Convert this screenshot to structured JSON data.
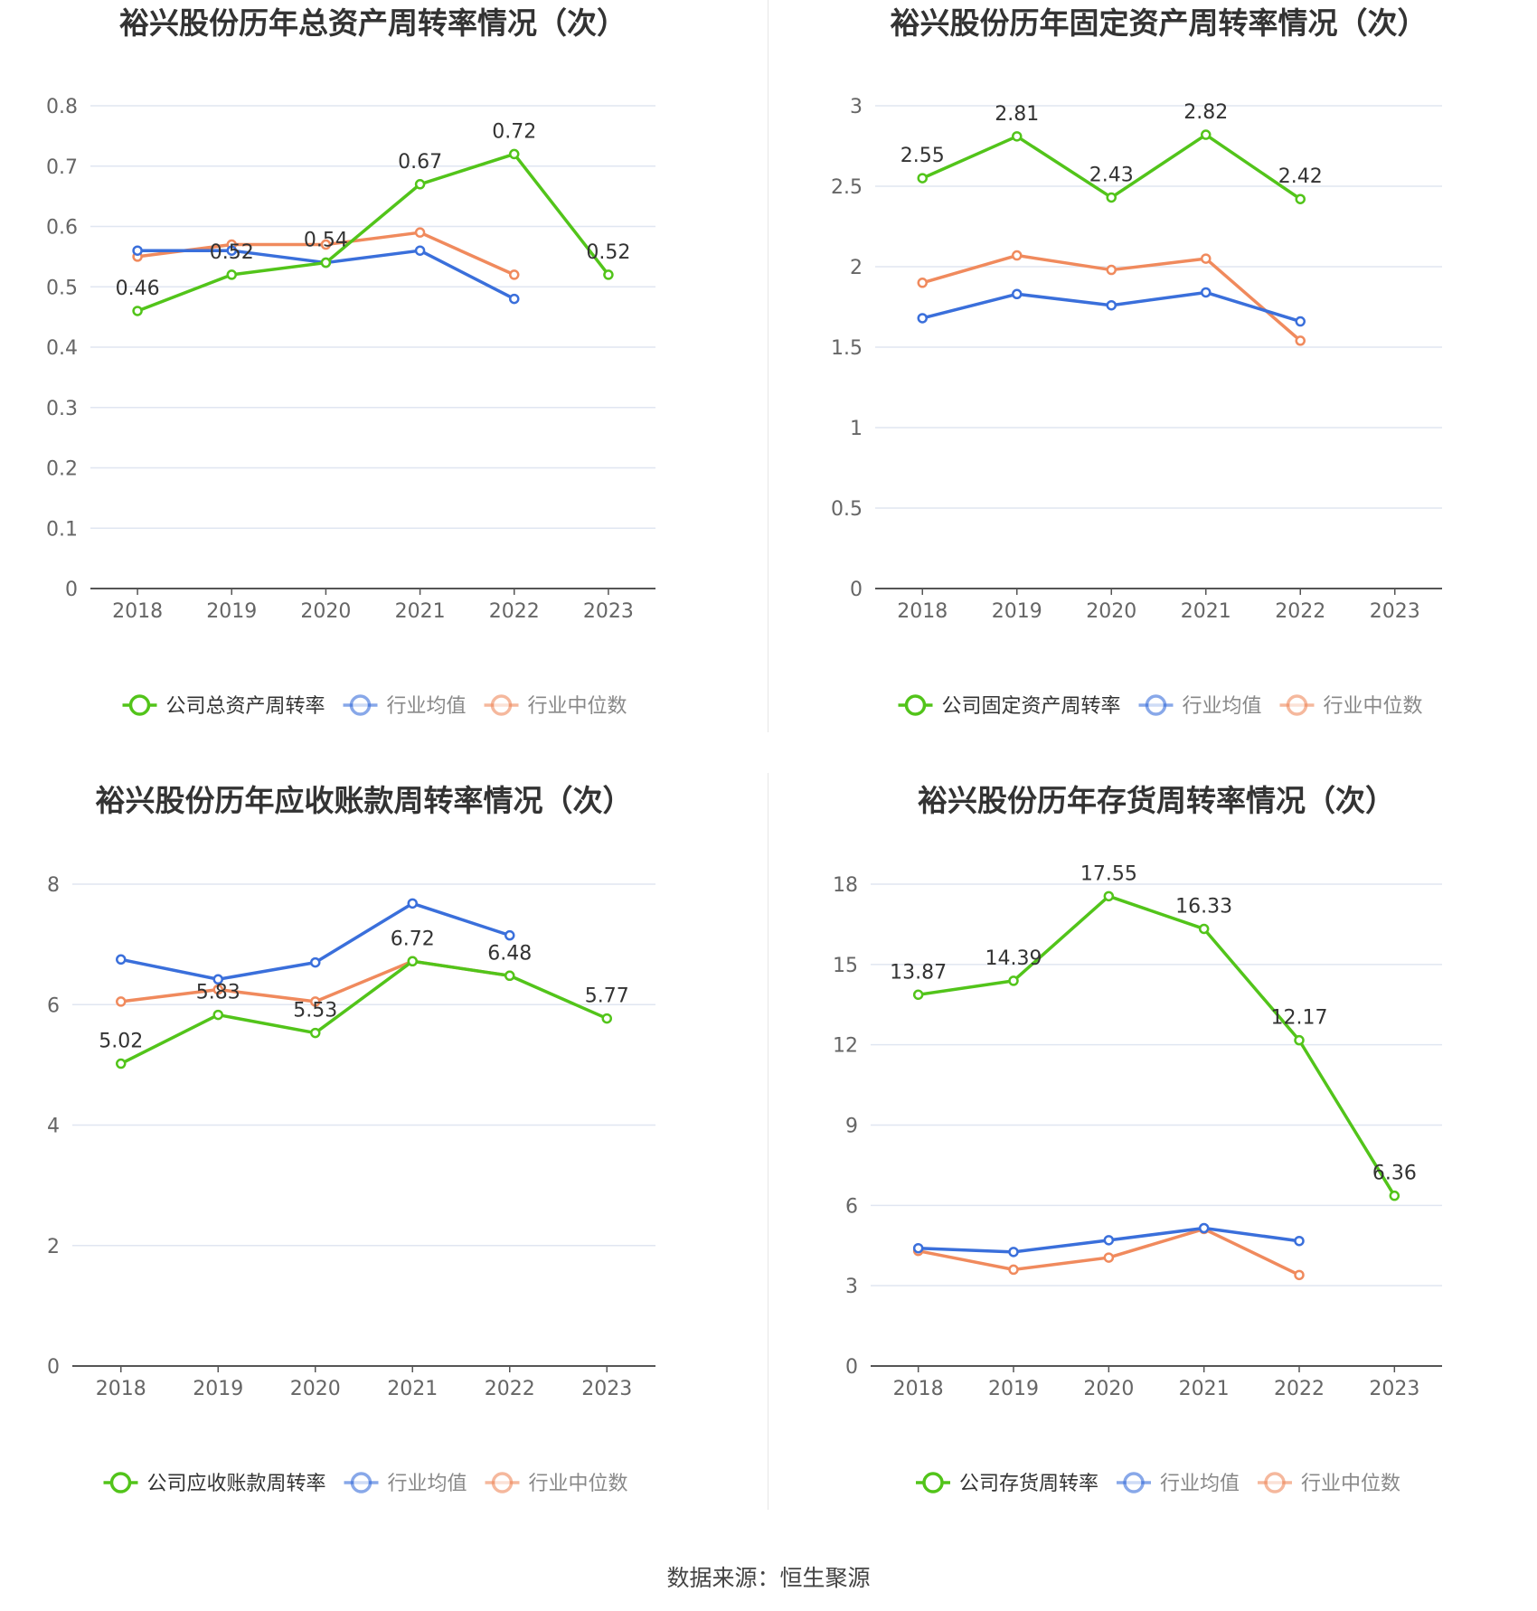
{
  "chart_data": [
    {
      "type": "line",
      "title": "裕兴股份历年总资产周转率情况（次）",
      "categories": [
        "2018",
        "2019",
        "2020",
        "2021",
        "2022",
        "2023"
      ],
      "y_ticks": [
        "0",
        "0.1",
        "0.2",
        "0.3",
        "0.4",
        "0.5",
        "0.6",
        "0.7",
        "0.8"
      ],
      "ylim": [
        0,
        0.8
      ],
      "grid": true,
      "legend_position": "bottom",
      "series": [
        {
          "name": "公司总资产周转率",
          "color": "#52c41a",
          "values": [
            0.46,
            0.52,
            0.54,
            0.67,
            0.72,
            0.52
          ],
          "labels": [
            "0.46",
            "0.52",
            "0.54",
            "0.67",
            "0.72",
            "0.52"
          ]
        },
        {
          "name": "行业均值",
          "color": "#3a6fdb",
          "values": [
            0.56,
            0.56,
            0.54,
            0.56,
            0.48,
            null
          ]
        },
        {
          "name": "行业中位数",
          "color": "#f08a5d",
          "values": [
            0.55,
            0.57,
            0.57,
            0.59,
            0.52,
            null
          ]
        }
      ]
    },
    {
      "type": "line",
      "title": "裕兴股份历年固定资产周转率情况（次）",
      "categories": [
        "2018",
        "2019",
        "2020",
        "2021",
        "2022",
        "2023"
      ],
      "y_ticks": [
        "0",
        "0.5",
        "1",
        "1.5",
        "2",
        "2.5",
        "3"
      ],
      "ylim": [
        0,
        3
      ],
      "grid": true,
      "legend_position": "bottom",
      "series": [
        {
          "name": "公司固定资产周转率",
          "color": "#52c41a",
          "values": [
            2.55,
            2.81,
            2.43,
            2.82,
            2.42,
            null
          ],
          "labels": [
            "2.55",
            "2.81",
            "2.43",
            "2.82",
            "2.42",
            ""
          ]
        },
        {
          "name": "行业均值",
          "color": "#3a6fdb",
          "values": [
            1.68,
            1.83,
            1.76,
            1.84,
            1.66,
            null
          ]
        },
        {
          "name": "行业中位数",
          "color": "#f08a5d",
          "values": [
            1.9,
            2.07,
            1.98,
            2.05,
            1.54,
            null
          ]
        }
      ]
    },
    {
      "type": "line",
      "title": "裕兴股份历年应收账款周转率情况（次）",
      "categories": [
        "2018",
        "2019",
        "2020",
        "2021",
        "2022",
        "2023"
      ],
      "y_ticks": [
        "0",
        "2",
        "4",
        "6",
        "8"
      ],
      "ylim": [
        0,
        8
      ],
      "grid": true,
      "legend_position": "bottom",
      "series": [
        {
          "name": "公司应收账款周转率",
          "color": "#52c41a",
          "values": [
            5.02,
            5.83,
            5.53,
            6.72,
            6.48,
            5.77
          ],
          "labels": [
            "5.02",
            "5.83",
            "5.53",
            "6.72",
            "6.48",
            "5.77"
          ]
        },
        {
          "name": "行业均值",
          "color": "#3a6fdb",
          "values": [
            6.75,
            6.42,
            6.7,
            7.68,
            7.15,
            null
          ]
        },
        {
          "name": "行业中位数",
          "color": "#f08a5d",
          "values": [
            6.05,
            6.25,
            6.05,
            6.72,
            6.48,
            null
          ]
        }
      ]
    },
    {
      "type": "line",
      "title": "裕兴股份历年存货周转率情况（次）",
      "categories": [
        "2018",
        "2019",
        "2020",
        "2021",
        "2022",
        "2023"
      ],
      "y_ticks": [
        "0",
        "3",
        "6",
        "9",
        "12",
        "15",
        "18"
      ],
      "ylim": [
        0,
        18
      ],
      "grid": true,
      "legend_position": "bottom",
      "series": [
        {
          "name": "公司存货周转率",
          "color": "#52c41a",
          "values": [
            13.87,
            14.39,
            17.55,
            16.33,
            12.17,
            6.36
          ],
          "labels": [
            "13.87",
            "14.39",
            "17.55",
            "16.33",
            "12.17",
            "6.36"
          ]
        },
        {
          "name": "行业均值",
          "color": "#3a6fdb",
          "values": [
            4.4,
            4.26,
            4.7,
            5.15,
            4.67,
            null
          ]
        },
        {
          "name": "行业中位数",
          "color": "#f08a5d",
          "values": [
            4.3,
            3.6,
            4.05,
            5.12,
            3.4,
            null
          ]
        }
      ]
    }
  ],
  "footer": {
    "source": "数据来源：恒生聚源"
  }
}
